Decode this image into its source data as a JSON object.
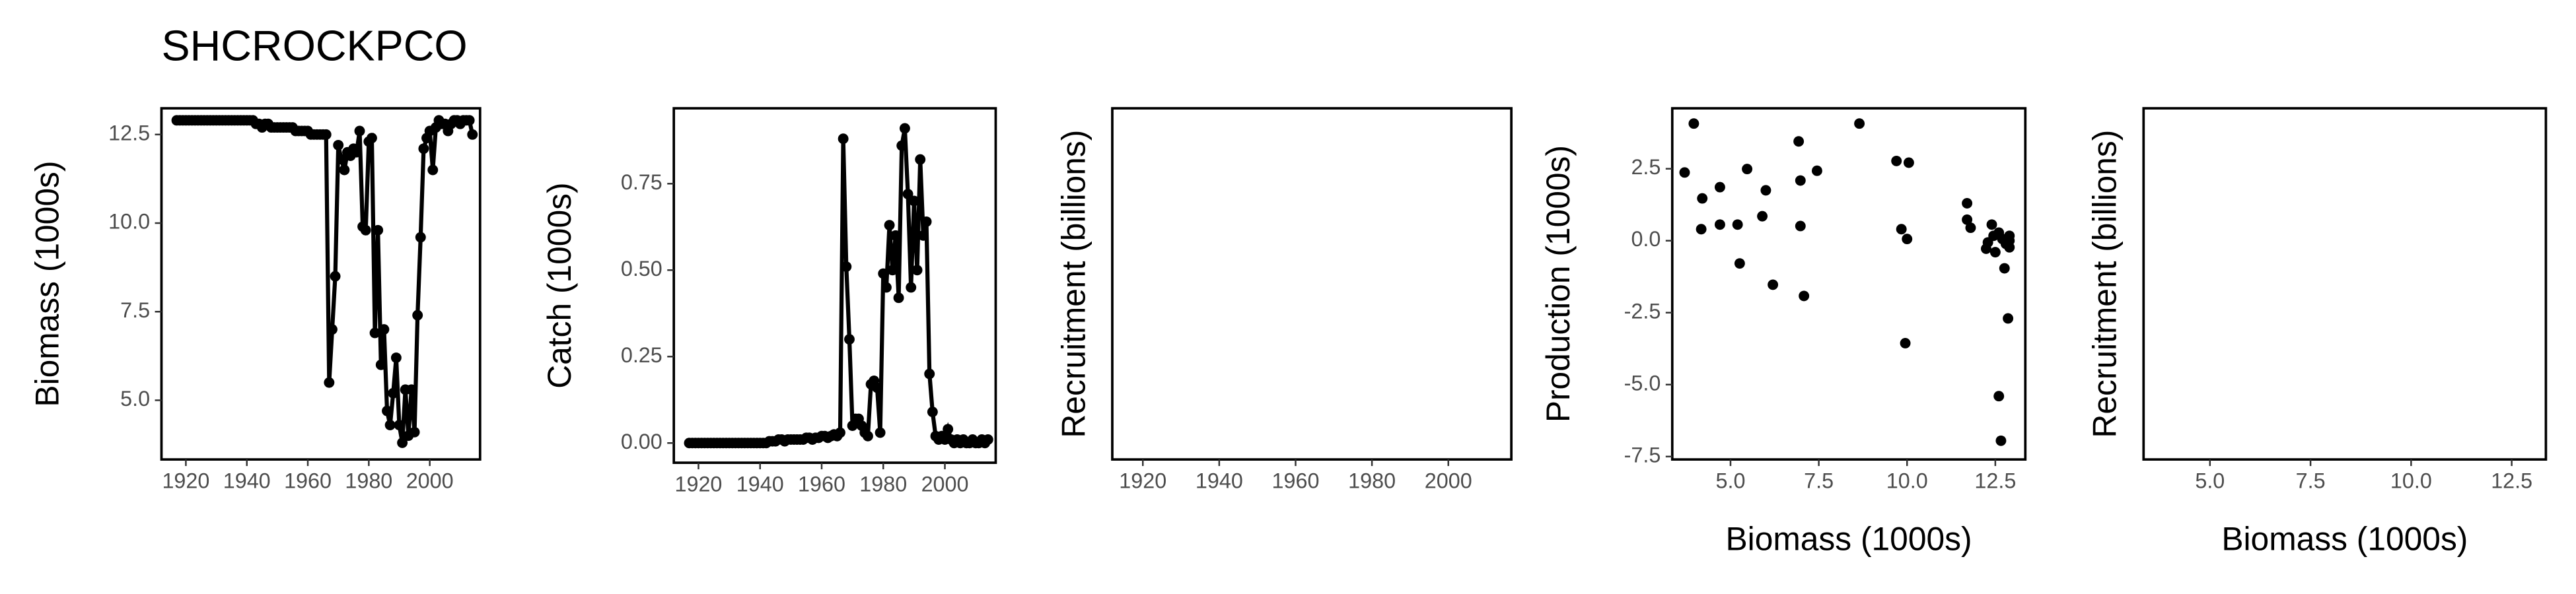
{
  "title": "SHCROCKPCO",
  "chart_data": [
    {
      "type": "line",
      "ylabel": "Biomass (1000s)",
      "color": "#000000",
      "x": [
        1917,
        1918,
        1919,
        1920,
        1921,
        1922,
        1923,
        1924,
        1925,
        1926,
        1927,
        1928,
        1929,
        1930,
        1931,
        1932,
        1933,
        1934,
        1935,
        1936,
        1937,
        1938,
        1939,
        1940,
        1941,
        1942,
        1943,
        1944,
        1945,
        1946,
        1947,
        1948,
        1949,
        1950,
        1951,
        1952,
        1953,
        1954,
        1955,
        1956,
        1957,
        1958,
        1959,
        1960,
        1961,
        1962,
        1963,
        1964,
        1965,
        1966,
        1967,
        1968,
        1969,
        1970,
        1971,
        1972,
        1973,
        1974,
        1975,
        1976,
        1977,
        1978,
        1979,
        1980,
        1981,
        1982,
        1983,
        1984,
        1985,
        1986,
        1987,
        1988,
        1989,
        1990,
        1991,
        1992,
        1993,
        1994,
        1995,
        1996,
        1997,
        1998,
        1999,
        2000,
        2001,
        2002,
        2003,
        2004,
        2005,
        2006,
        2007,
        2008,
        2009,
        2010,
        2011,
        2012,
        2013,
        2014
      ],
      "values": [
        12.9,
        12.9,
        12.9,
        12.9,
        12.9,
        12.9,
        12.9,
        12.9,
        12.9,
        12.9,
        12.9,
        12.9,
        12.9,
        12.9,
        12.9,
        12.9,
        12.9,
        12.9,
        12.9,
        12.9,
        12.9,
        12.9,
        12.9,
        12.9,
        12.9,
        12.9,
        12.8,
        12.8,
        12.7,
        12.8,
        12.8,
        12.7,
        12.7,
        12.7,
        12.7,
        12.7,
        12.7,
        12.7,
        12.7,
        12.6,
        12.6,
        12.6,
        12.6,
        12.6,
        12.5,
        12.5,
        12.5,
        12.5,
        12.5,
        12.5,
        5.5,
        7.0,
        8.5,
        12.2,
        11.8,
        11.5,
        12.0,
        11.9,
        12.1,
        12.0,
        12.6,
        9.9,
        9.8,
        12.3,
        12.4,
        6.9,
        9.8,
        6.0,
        7.0,
        4.7,
        4.3,
        5.2,
        6.2,
        4.3,
        3.8,
        5.3,
        4.0,
        5.3,
        4.1,
        7.4,
        9.6,
        12.1,
        12.4,
        12.6,
        11.5,
        12.7,
        12.9,
        12.8,
        12.8,
        12.6,
        12.8,
        12.9,
        12.9,
        12.8,
        12.9,
        12.9,
        12.9,
        12.5
      ],
      "xlim": [
        1912,
        2016.5
      ],
      "xticks": [
        1920,
        1940,
        1960,
        1980,
        2000
      ],
      "ylim": [
        3.33,
        13.24
      ],
      "yticks": [
        {
          "value": 5,
          "label": "5.0"
        },
        7.5,
        {
          "value": 10,
          "label": "10.0"
        },
        12.5
      ]
    },
    {
      "type": "line",
      "ylabel": "Catch (1000s)",
      "color": "#000000",
      "x": [
        1917,
        1918,
        1919,
        1920,
        1921,
        1922,
        1923,
        1924,
        1925,
        1926,
        1927,
        1928,
        1929,
        1930,
        1931,
        1932,
        1933,
        1934,
        1935,
        1936,
        1937,
        1938,
        1939,
        1940,
        1941,
        1942,
        1943,
        1944,
        1945,
        1946,
        1947,
        1948,
        1949,
        1950,
        1951,
        1952,
        1953,
        1954,
        1955,
        1956,
        1957,
        1958,
        1959,
        1960,
        1961,
        1962,
        1963,
        1964,
        1965,
        1966,
        1967,
        1968,
        1969,
        1970,
        1971,
        1972,
        1973,
        1974,
        1975,
        1976,
        1977,
        1978,
        1979,
        1980,
        1981,
        1982,
        1983,
        1984,
        1985,
        1986,
        1987,
        1988,
        1989,
        1990,
        1991,
        1992,
        1993,
        1994,
        1995,
        1996,
        1997,
        1998,
        1999,
        2000,
        2001,
        2002,
        2003,
        2004,
        2005,
        2006,
        2007,
        2008,
        2009,
        2010,
        2011,
        2012,
        2013,
        2014
      ],
      "values": [
        0,
        0,
        0,
        0,
        0,
        0,
        0,
        0,
        0,
        0,
        0,
        0,
        0,
        0,
        0,
        0,
        0,
        0,
        0,
        0,
        0,
        0,
        0,
        0,
        0.0,
        0.0,
        0.005,
        0.005,
        0.005,
        0.01,
        0.01,
        0.005,
        0.01,
        0.01,
        0.01,
        0.01,
        0.01,
        0.01,
        0.015,
        0.015,
        0.01,
        0.015,
        0.015,
        0.02,
        0.02,
        0.015,
        0.02,
        0.025,
        0.02,
        0.03,
        0.88,
        0.51,
        0.3,
        0.05,
        0.07,
        0.07,
        0.05,
        0.03,
        0.02,
        0.17,
        0.18,
        0.16,
        0.03,
        0.49,
        0.45,
        0.63,
        0.5,
        0.6,
        0.42,
        0.86,
        0.91,
        0.72,
        0.45,
        0.7,
        0.5,
        0.82,
        0.6,
        0.64,
        0.2,
        0.09,
        0.02,
        0.01,
        0.02,
        0.01,
        0.04,
        0.01,
        0.0,
        0.01,
        0.0,
        0.01,
        0.0,
        0.0,
        0.01,
        0.0,
        0.0,
        0.01,
        0.0,
        0.01
      ],
      "xlim": [
        1912,
        2016.5
      ],
      "xticks": [
        1920,
        1940,
        1960,
        1980,
        2000
      ],
      "ylim": [
        -0.057,
        0.968
      ],
      "yticks": [
        {
          "value": 0,
          "label": "0.00"
        },
        0.25,
        {
          "value": 0.5,
          "label": "0.50"
        },
        0.75
      ]
    },
    {
      "type": "line",
      "ylabel": "Recruitment (billions)",
      "xlim": [
        1912,
        2016.5
      ],
      "xticks": [
        1920,
        1940,
        1960,
        1980,
        2000
      ]
    },
    {
      "type": "scatter",
      "ylabel": "Production (1000s)",
      "xlabel": "Biomass (1000s)",
      "color": "#000000",
      "x": [
        3.7,
        3.96,
        4.2,
        4.17,
        4.7,
        4.7,
        5.2,
        5.26,
        5.47,
        5.9,
        6.0,
        6.2,
        6.93,
        6.98,
        6.98,
        7.08,
        7.45,
        8.65,
        9.7,
        10.05,
        9.84,
        10.0,
        9.95,
        11.7,
        11.7,
        11.8,
        12.24,
        12.29,
        12.4,
        12.45,
        12.5,
        12.6,
        12.7,
        12.8,
        12.9,
        12.9,
        12.9,
        12.76,
        12.86,
        12.6,
        12.66
      ],
      "values": [
        2.37,
        4.07,
        1.47,
        0.4,
        1.86,
        0.56,
        0.56,
        -0.79,
        2.49,
        0.85,
        1.75,
        -1.53,
        3.45,
        2.09,
        0.51,
        -1.92,
        2.43,
        4.07,
        2.77,
        2.71,
        0.4,
        0.06,
        -3.56,
        1.3,
        0.73,
        0.45,
        -0.28,
        -0.06,
        0.56,
        0.17,
        -0.4,
        0.28,
        0.06,
        -0.11,
        0.17,
        -0.23,
        0.0,
        -0.96,
        -2.7,
        -5.4,
        -6.95
      ],
      "xlim": [
        3.35,
        13.35
      ],
      "xticks": [
        {
          "value": 5,
          "label": "5.0"
        },
        7.5,
        {
          "value": 10,
          "label": "10.0"
        },
        12.5
      ],
      "ylim": [
        -7.6,
        4.6
      ],
      "yticks": [
        -7.5,
        {
          "value": -5,
          "label": "-5.0"
        },
        -2.5,
        {
          "value": 0,
          "label": "0.0"
        },
        2.5
      ]
    },
    {
      "type": "scatter",
      "ylabel": "Recruitment (billions)",
      "xlabel": "Biomass (1000s)",
      "xlim": [
        3.35,
        13.35
      ],
      "xticks": [
        {
          "value": 5,
          "label": "5.0"
        },
        7.5,
        {
          "value": 10,
          "label": "10.0"
        },
        12.5
      ]
    }
  ]
}
